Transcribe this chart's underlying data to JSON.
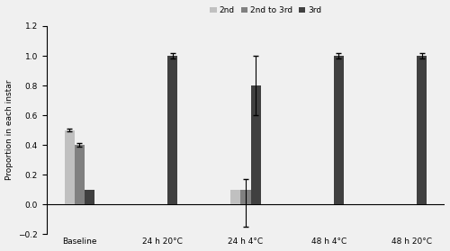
{
  "categories": [
    "Baseline",
    "24 h 20°C",
    "24 h 4°C",
    "48 h 4°C",
    "48 h 20°C"
  ],
  "series": {
    "2nd": {
      "values": [
        0.5,
        0.0,
        0.1,
        0.0,
        0.0
      ],
      "color": "#c0c0c0"
    },
    "2nd to 3rd": {
      "values": [
        0.4,
        0.0,
        0.1,
        0.0,
        0.0
      ],
      "color": "#808080"
    },
    "3rd": {
      "values": [
        0.1,
        1.0,
        0.8,
        1.0,
        1.0
      ],
      "color": "#404040"
    }
  },
  "errors": {
    "2nd": [
      0.01,
      0.0,
      0.0,
      0.0,
      0.0
    ],
    "2nd to 3rd": [
      0.01,
      0.0,
      0.07,
      0.0,
      0.0
    ],
    "3rd": [
      0.0,
      0.02,
      0.2,
      0.02,
      0.02
    ]
  },
  "asymmetric_24h4c_2ndto3rd": {
    "lower": 0.25,
    "upper": 0.07
  },
  "ylabel": "Proportion in each instar",
  "ylim": [
    -0.2,
    1.2
  ],
  "yticks": [
    -0.2,
    0.0,
    0.2,
    0.4,
    0.6,
    0.8,
    1.0,
    1.2
  ],
  "bar_width": 0.18,
  "x_positions": [
    0.5,
    2.0,
    3.5,
    5.0,
    6.5
  ],
  "legend_labels": [
    "2nd",
    "2nd to 3rd",
    "3rd"
  ],
  "fig_width": 5.0,
  "fig_height": 2.79,
  "dpi": 100,
  "background_color": "#f0f0f0",
  "error_capsize": 2,
  "legend_fontsize": 6.5,
  "axis_fontsize": 6.5,
  "tick_fontsize": 6.5
}
